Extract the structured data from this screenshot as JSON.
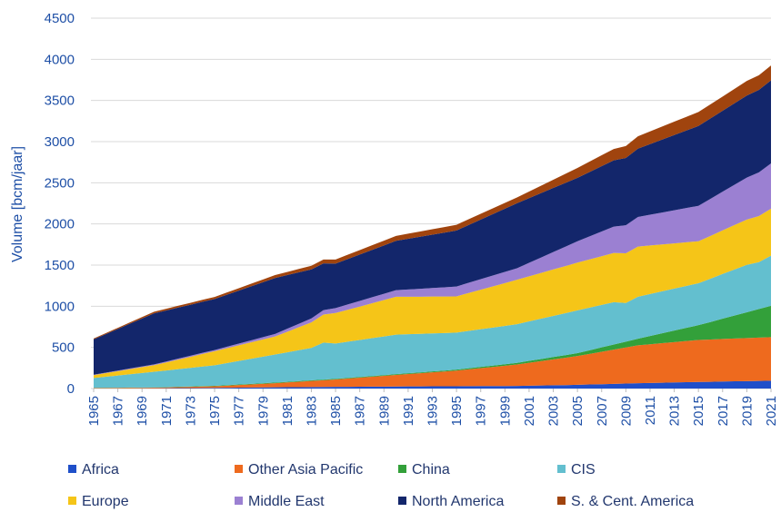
{
  "chart_data": {
    "type": "stacked_area",
    "y_label": "Volume [bcm/jaar]",
    "x": [
      1965,
      1966,
      1967,
      1968,
      1969,
      1970,
      1971,
      1972,
      1973,
      1974,
      1975,
      1976,
      1977,
      1978,
      1979,
      1980,
      1981,
      1982,
      1983,
      1984,
      1985,
      1986,
      1987,
      1988,
      1989,
      1990,
      1991,
      1992,
      1993,
      1994,
      1995,
      1996,
      1997,
      1998,
      1999,
      2000,
      2001,
      2002,
      2003,
      2004,
      2005,
      2006,
      2007,
      2008,
      2009,
      2010,
      2011,
      2012,
      2013,
      2014,
      2015,
      2016,
      2017,
      2018,
      2019,
      2020,
      2021
    ],
    "xlim": [
      1965,
      2021
    ],
    "xticks": [
      1965,
      1967,
      1969,
      1971,
      1973,
      1975,
      1977,
      1979,
      1981,
      1983,
      1985,
      1987,
      1989,
      1991,
      1993,
      1995,
      1997,
      1999,
      2001,
      2003,
      2005,
      2007,
      2009,
      2011,
      2013,
      2015,
      2017,
      2019,
      2021
    ],
    "ylim": [
      0,
      4500
    ],
    "yticks": [
      0,
      500,
      1000,
      1500,
      2000,
      2500,
      3000,
      3500,
      4000,
      4500
    ],
    "grid": true,
    "legend": "bottom",
    "series": [
      {
        "name": "Africa",
        "color": "#1f4fc9",
        "values": [
          1,
          1,
          2,
          2,
          3,
          3,
          4,
          5,
          6,
          7,
          8,
          9,
          11,
          12,
          14,
          15,
          16,
          17,
          18,
          19,
          20,
          21,
          22,
          23,
          24,
          25,
          26,
          26,
          27,
          27,
          28,
          29,
          30,
          30,
          31,
          32,
          35,
          37,
          40,
          42,
          45,
          49,
          53,
          57,
          61,
          65,
          68,
          71,
          74,
          77,
          80,
          82,
          85,
          88,
          90,
          92,
          95
        ]
      },
      {
        "name": "Other Asia Pacific",
        "color": "#ee6a1e",
        "values": [
          5,
          6,
          6,
          7,
          7,
          8,
          10,
          13,
          15,
          18,
          20,
          26,
          32,
          38,
          44,
          50,
          58,
          66,
          74,
          82,
          90,
          100,
          110,
          120,
          130,
          140,
          150,
          160,
          170,
          180,
          190,
          204,
          218,
          232,
          246,
          260,
          278,
          296,
          314,
          332,
          350,
          372,
          394,
          416,
          438,
          460,
          470,
          480,
          490,
          500,
          510,
          513,
          517,
          520,
          523,
          527,
          530
        ]
      },
      {
        "name": "China",
        "color": "#33a03a",
        "values": [
          2,
          2,
          2,
          3,
          3,
          3,
          3,
          4,
          4,
          5,
          5,
          6,
          6,
          7,
          7,
          8,
          8,
          8,
          8,
          8,
          8,
          8,
          8,
          9,
          9,
          10,
          10,
          10,
          11,
          11,
          12,
          14,
          15,
          17,
          18,
          20,
          23,
          26,
          29,
          32,
          35,
          44,
          53,
          62,
          71,
          80,
          100,
          120,
          140,
          160,
          180,
          213,
          247,
          280,
          313,
          347,
          380
        ]
      },
      {
        "name": "CIS",
        "color": "#63bfcf",
        "values": [
          120,
          134,
          148,
          162,
          176,
          190,
          202,
          214,
          226,
          238,
          250,
          268,
          286,
          304,
          322,
          340,
          358,
          376,
          394,
          450,
          430,
          440,
          450,
          460,
          470,
          480,
          474,
          468,
          462,
          456,
          450,
          454,
          458,
          462,
          466,
          470,
          480,
          490,
          500,
          510,
          520,
          518,
          516,
          514,
          470,
          510,
          510,
          510,
          510,
          510,
          510,
          527,
          543,
          560,
          577,
          570,
          610
        ]
      },
      {
        "name": "Europe",
        "color": "#f5c518",
        "values": [
          35,
          44,
          53,
          62,
          71,
          80,
          98,
          116,
          134,
          152,
          170,
          180,
          190,
          200,
          210,
          220,
          250,
          280,
          310,
          340,
          370,
          388,
          406,
          424,
          442,
          460,
          456,
          452,
          448,
          444,
          440,
          460,
          480,
          500,
          520,
          540,
          548,
          556,
          564,
          572,
          580,
          586,
          592,
          598,
          604,
          610,
          590,
          570,
          550,
          530,
          510,
          520,
          530,
          540,
          550,
          560,
          570
        ]
      },
      {
        "name": "Middle East",
        "color": "#9b80d2",
        "values": [
          5,
          6,
          7,
          8,
          9,
          10,
          11,
          12,
          13,
          14,
          15,
          18,
          21,
          24,
          27,
          30,
          36,
          42,
          48,
          54,
          60,
          64,
          68,
          72,
          76,
          80,
          88,
          96,
          104,
          112,
          120,
          124,
          128,
          132,
          136,
          140,
          164,
          188,
          212,
          236,
          260,
          280,
          300,
          320,
          340,
          360,
          374,
          388,
          402,
          416,
          430,
          450,
          470,
          490,
          510,
          530,
          550
        ]
      },
      {
        "name": "North America",
        "color": "#13266b",
        "values": [
          430,
          468,
          506,
          544,
          582,
          620,
          620,
          620,
          620,
          620,
          620,
          632,
          644,
          656,
          668,
          680,
          652,
          624,
          596,
          568,
          540,
          552,
          564,
          576,
          588,
          600,
          616,
          632,
          648,
          664,
          680,
          702,
          724,
          746,
          768,
          790,
          786,
          782,
          778,
          774,
          770,
          782,
          794,
          806,
          818,
          830,
          858,
          886,
          914,
          942,
          970,
          977,
          983,
          990,
          997,
          1003,
          1010
        ]
      },
      {
        "name": "S. & Cent. America",
        "color": "#a0440e",
        "values": [
          10,
          12,
          14,
          16,
          18,
          20,
          21,
          22,
          23,
          24,
          25,
          27,
          29,
          31,
          33,
          35,
          38,
          41,
          44,
          47,
          50,
          52,
          54,
          56,
          58,
          60,
          62,
          64,
          66,
          68,
          70,
          70,
          70,
          70,
          70,
          70,
          80,
          90,
          100,
          110,
          120,
          126,
          132,
          138,
          144,
          150,
          154,
          158,
          162,
          166,
          170,
          172,
          173,
          175,
          177,
          178,
          180
        ]
      }
    ]
  }
}
